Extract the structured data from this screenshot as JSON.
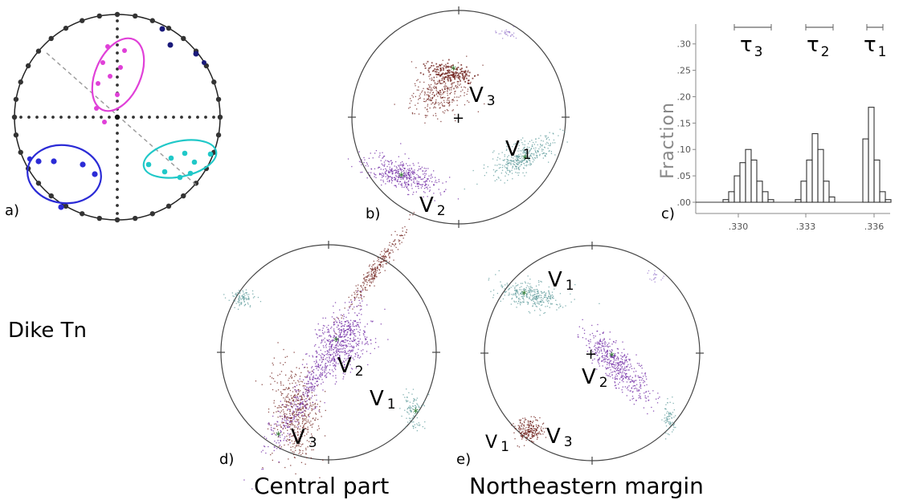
{
  "panels": {
    "a": {
      "letter": "a)"
    },
    "b": {
      "letter": "b)",
      "labels": {
        "v3": {
          "main": "V",
          "sub": "3"
        },
        "v1": {
          "main": "V",
          "sub": "1"
        },
        "v2": {
          "main": "V",
          "sub": "2"
        }
      }
    },
    "c": {
      "letter": "c)"
    },
    "d": {
      "letter": "d)",
      "caption": "Central part",
      "labels": {
        "v2": {
          "main": "V",
          "sub": "2"
        },
        "v1": {
          "main": "V",
          "sub": "1"
        },
        "v3": {
          "main": "V",
          "sub": "3"
        }
      }
    },
    "e": {
      "letter": "e)",
      "caption": "Northeastern margin",
      "labels": {
        "v1": {
          "main": "V",
          "sub": "1"
        },
        "v2": {
          "main": "V",
          "sub": "2"
        },
        "v3": {
          "main": "V",
          "sub": "3"
        },
        "v1b": {
          "main": "V",
          "sub": "1"
        }
      }
    }
  },
  "side_label": "Dike Tn",
  "colors": {
    "v1": "#5e9b9b",
    "v2": "#6a1fa0",
    "v3": "#6b1a14",
    "magenta": "#e040d8",
    "blue": "#2b2bd6",
    "cyan": "#20c8c8",
    "navy": "#1a1a7a"
  },
  "chart_data": {
    "type": "bar",
    "ylabel": "Fraction",
    "ylim": [
      0,
      0.33
    ],
    "yticks": [
      ".00",
      ".05",
      ".10",
      ".15",
      ".20",
      ".25",
      ".30"
    ],
    "xticks": [
      ".330",
      ".333",
      ".336"
    ],
    "legend": [
      {
        "main": "τ",
        "sub": "3"
      },
      {
        "main": "τ",
        "sub": "2"
      },
      {
        "main": "τ",
        "sub": "1"
      }
    ],
    "series": [
      {
        "values": [
          0.005,
          0.02,
          0.05,
          0.075,
          0.1,
          0.08,
          0.04,
          0.02,
          0.005
        ]
      },
      {
        "values": [
          0.005,
          0.04,
          0.08,
          0.13,
          0.1,
          0.04,
          0.01
        ]
      },
      {
        "values": [
          0.12,
          0.18,
          0.08,
          0.02,
          0.005
        ]
      }
    ]
  }
}
